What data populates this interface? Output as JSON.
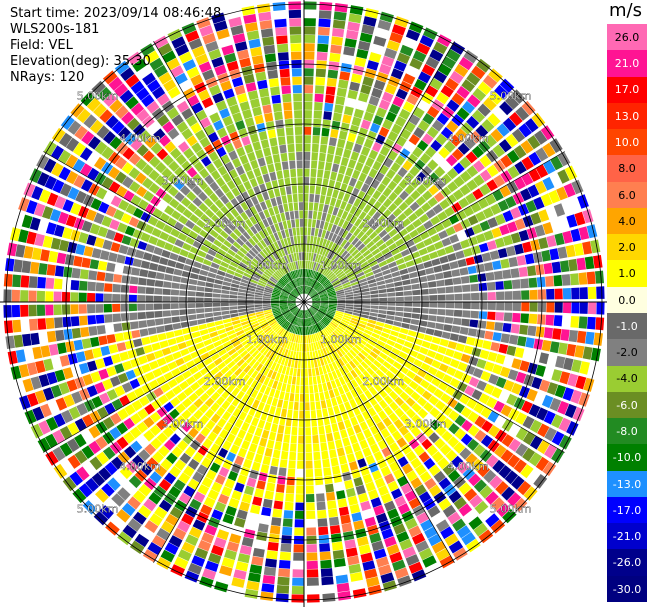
{
  "info": {
    "start_time": "Start time: 2023/09/14 08:46:48",
    "instrument": "WLS200s-181",
    "field": "Field: VEL",
    "elevation": "Elevation(deg): 35.30",
    "nrays": "NRays: 120"
  },
  "colorbar": {
    "unit": "m/s",
    "labels": [
      "26.0",
      "21.0",
      "17.0",
      "13.0",
      "10.0",
      "8.0",
      "6.0",
      "4.0",
      "2.0",
      "1.0",
      "0.0",
      "-1.0",
      "-2.0",
      "-4.0",
      "-6.0",
      "-8.0",
      "-10.0",
      "-13.0",
      "-17.0",
      "-21.0",
      "-26.0",
      "-30.0"
    ],
    "colors": [
      "#ff69b4",
      "#ff1493",
      "#ff0000",
      "#ff2400",
      "#ff4500",
      "#ff6347",
      "#ff7f50",
      "#ffa500",
      "#ffd700",
      "#ffff00",
      "#ffffe0",
      "#696969",
      "#808080",
      "#9acd32",
      "#6b8e23",
      "#228b22",
      "#008000",
      "#1e90ff",
      "#0000ff",
      "#0000cd",
      "#00008b",
      "#000080"
    ],
    "text_colors": [
      "#000000",
      "#ffffff",
      "#ffffff",
      "#ffffff",
      "#ffffff",
      "#000000",
      "#000000",
      "#000000",
      "#000000",
      "#000000",
      "#000000",
      "#ffffff",
      "#000000",
      "#000000",
      "#ffffff",
      "#ffffff",
      "#ffffff",
      "#ffffff",
      "#ffffff",
      "#ffffff",
      "#ffffff",
      "#ffffff"
    ]
  },
  "range_rings": {
    "labels": [
      "1.00km",
      "2.00km",
      "3.00km",
      "4.00km",
      "5.00km"
    ]
  }
}
